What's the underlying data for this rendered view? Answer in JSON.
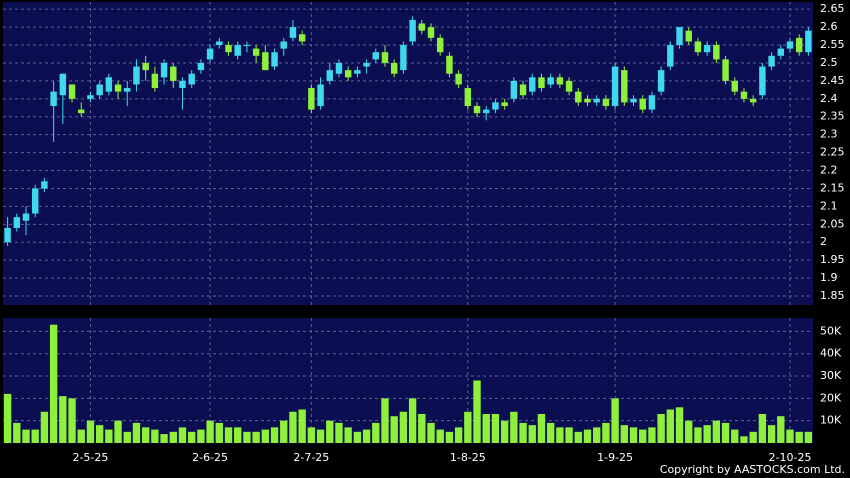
{
  "chart_data": {
    "type": "candlestick",
    "open": [
      2.0,
      2.04,
      2.06,
      2.08,
      2.15,
      2.38,
      2.41,
      2.44,
      2.37,
      2.4,
      2.41,
      2.42,
      2.44,
      2.42,
      2.44,
      2.5,
      2.47,
      2.46,
      2.49,
      2.43,
      2.44,
      2.48,
      2.51,
      2.55,
      2.55,
      2.52,
      2.55,
      2.54,
      2.53,
      2.49,
      2.54,
      2.57,
      2.58,
      2.43,
      2.38,
      2.45,
      2.47,
      2.48,
      2.47,
      2.49,
      2.51,
      2.53,
      2.5,
      2.48,
      2.56,
      2.61,
      2.6,
      2.57,
      2.52,
      2.47,
      2.43,
      2.38,
      2.36,
      2.37,
      2.39,
      2.4,
      2.44,
      2.42,
      2.46,
      2.44,
      2.46,
      2.45,
      2.42,
      2.4,
      2.39,
      2.4,
      2.38,
      2.48,
      2.39,
      2.4,
      2.37,
      2.42,
      2.49,
      2.55,
      2.59,
      2.56,
      2.53,
      2.55,
      2.51,
      2.45,
      2.42,
      2.4,
      2.41,
      2.49,
      2.52,
      2.54,
      2.57,
      2.53
    ],
    "high": [
      2.07,
      2.08,
      2.1,
      2.16,
      2.18,
      2.45,
      2.47,
      2.44,
      2.39,
      2.42,
      2.45,
      2.47,
      2.45,
      2.45,
      2.51,
      2.52,
      2.49,
      2.51,
      2.5,
      2.46,
      2.48,
      2.51,
      2.55,
      2.57,
      2.56,
      2.56,
      2.56,
      2.55,
      2.55,
      2.54,
      2.57,
      2.62,
      2.59,
      2.44,
      2.46,
      2.5,
      2.51,
      2.49,
      2.49,
      2.51,
      2.54,
      2.55,
      2.51,
      2.56,
      2.63,
      2.62,
      2.61,
      2.58,
      2.53,
      2.48,
      2.44,
      2.39,
      2.38,
      2.4,
      2.4,
      2.46,
      2.45,
      2.47,
      2.47,
      2.47,
      2.47,
      2.46,
      2.43,
      2.41,
      2.41,
      2.41,
      2.5,
      2.49,
      2.41,
      2.41,
      2.42,
      2.49,
      2.56,
      2.6,
      2.6,
      2.57,
      2.56,
      2.56,
      2.52,
      2.46,
      2.43,
      2.41,
      2.5,
      2.53,
      2.55,
      2.57,
      2.58,
      2.6
    ],
    "low": [
      1.99,
      2.03,
      2.02,
      2.07,
      2.14,
      2.28,
      2.33,
      2.39,
      2.35,
      2.39,
      2.4,
      2.41,
      2.4,
      2.38,
      2.42,
      2.45,
      2.42,
      2.44,
      2.43,
      2.37,
      2.43,
      2.47,
      2.5,
      2.54,
      2.52,
      2.51,
      2.53,
      2.5,
      2.48,
      2.48,
      2.52,
      2.56,
      2.55,
      2.36,
      2.37,
      2.44,
      2.46,
      2.45,
      2.46,
      2.47,
      2.5,
      2.49,
      2.46,
      2.47,
      2.55,
      2.58,
      2.56,
      2.52,
      2.46,
      2.43,
      2.37,
      2.35,
      2.34,
      2.36,
      2.37,
      2.39,
      2.4,
      2.41,
      2.42,
      2.43,
      2.43,
      2.41,
      2.38,
      2.38,
      2.38,
      2.37,
      2.37,
      2.38,
      2.38,
      2.36,
      2.36,
      2.41,
      2.48,
      2.54,
      2.55,
      2.52,
      2.52,
      2.5,
      2.44,
      2.41,
      2.39,
      2.38,
      2.4,
      2.48,
      2.51,
      2.53,
      2.52,
      2.52
    ],
    "close": [
      2.04,
      2.07,
      2.08,
      2.15,
      2.17,
      2.42,
      2.47,
      2.4,
      2.36,
      2.41,
      2.44,
      2.46,
      2.42,
      2.43,
      2.49,
      2.48,
      2.43,
      2.5,
      2.45,
      2.45,
      2.47,
      2.5,
      2.54,
      2.56,
      2.53,
      2.55,
      2.55,
      2.52,
      2.48,
      2.53,
      2.56,
      2.6,
      2.56,
      2.37,
      2.44,
      2.48,
      2.5,
      2.46,
      2.48,
      2.5,
      2.53,
      2.5,
      2.47,
      2.55,
      2.62,
      2.59,
      2.57,
      2.53,
      2.47,
      2.44,
      2.38,
      2.36,
      2.37,
      2.39,
      2.38,
      2.45,
      2.41,
      2.46,
      2.43,
      2.46,
      2.44,
      2.42,
      2.39,
      2.39,
      2.4,
      2.38,
      2.49,
      2.39,
      2.4,
      2.37,
      2.41,
      2.48,
      2.55,
      2.6,
      2.56,
      2.53,
      2.55,
      2.51,
      2.45,
      2.42,
      2.4,
      2.39,
      2.49,
      2.52,
      2.54,
      2.56,
      2.53,
      2.59
    ],
    "volume": [
      22000,
      9000,
      6000,
      6000,
      14000,
      53000,
      21000,
      20000,
      6000,
      10000,
      8000,
      6000,
      10000,
      5000,
      9000,
      7000,
      6000,
      4000,
      5000,
      7000,
      5000,
      6000,
      10000,
      9000,
      7000,
      7000,
      5000,
      5000,
      6000,
      7000,
      10000,
      14000,
      15000,
      7000,
      6000,
      10000,
      9000,
      7000,
      5000,
      6000,
      9000,
      20000,
      12000,
      14000,
      20000,
      13000,
      9000,
      6000,
      5000,
      7000,
      14000,
      28000,
      13000,
      13000,
      10000,
      14000,
      9000,
      8000,
      13000,
      9000,
      7000,
      7000,
      5000,
      6000,
      7000,
      9000,
      20000,
      8000,
      7000,
      6000,
      7000,
      13000,
      15000,
      16000,
      10000,
      7000,
      8000,
      10000,
      9000,
      6000,
      3000,
      5000,
      13000,
      8000,
      12000,
      6000,
      5000,
      5000
    ],
    "up_color": "#3fd8ee",
    "down_color": "#8ef03a",
    "xlim": [
      -0.5,
      87.5
    ],
    "xticks": [
      {
        "value": 9,
        "label": "2-5-25"
      },
      {
        "value": 22,
        "label": "2-6-25"
      },
      {
        "value": 33,
        "label": "2-7-25"
      },
      {
        "value": 50,
        "label": "1-8-25"
      },
      {
        "value": 66,
        "label": "1-9-25"
      },
      {
        "value": 85,
        "label": "2-10-25"
      }
    ],
    "ylim": [
      1.825,
      2.67
    ],
    "yticks": [
      1.85,
      1.9,
      1.95,
      2,
      2.05,
      2.1,
      2.15,
      2.2,
      2.25,
      2.3,
      2.35,
      2.4,
      2.45,
      2.5,
      2.55,
      2.6,
      2.65
    ],
    "y2lim": [
      0,
      56000
    ],
    "y2ticks": [
      {
        "value": 10000,
        "label": "10K"
      },
      {
        "value": 20000,
        "label": "20K"
      },
      {
        "value": 30000,
        "label": "30K"
      },
      {
        "value": 40000,
        "label": "40K"
      },
      {
        "value": 50000,
        "label": "50K"
      }
    ],
    "grid": true,
    "copyright": "Copyright by AASTOCKS.com Ltd."
  }
}
